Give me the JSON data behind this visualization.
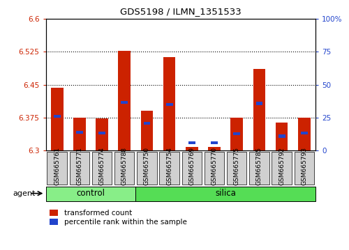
{
  "title": "GDS5198 / ILMN_1351533",
  "samples": [
    "GSM665761",
    "GSM665771",
    "GSM665774",
    "GSM665788",
    "GSM665750",
    "GSM665754",
    "GSM665769",
    "GSM665770",
    "GSM665775",
    "GSM665785",
    "GSM665792",
    "GSM665793"
  ],
  "red_values": [
    6.443,
    6.375,
    6.373,
    6.527,
    6.39,
    6.513,
    6.308,
    6.308,
    6.375,
    6.485,
    6.363,
    6.375
  ],
  "blue_values": [
    6.378,
    6.342,
    6.34,
    6.41,
    6.362,
    6.405,
    6.318,
    6.318,
    6.338,
    6.407,
    6.333,
    6.34
  ],
  "ylim_left": [
    6.3,
    6.6
  ],
  "ylim_right": [
    0,
    100
  ],
  "yticks_left": [
    6.3,
    6.375,
    6.45,
    6.525,
    6.6
  ],
  "yticks_right": [
    0,
    25,
    50,
    75,
    100
  ],
  "ytick_labels_left": [
    "6.3",
    "6.375",
    "6.45",
    "6.525",
    "6.6"
  ],
  "ytick_labels_right": [
    "0",
    "25",
    "50",
    "75",
    "100%"
  ],
  "dotted_lines": [
    6.375,
    6.45,
    6.525
  ],
  "base_value": 6.3,
  "bar_width": 0.55,
  "red_color": "#cc2200",
  "blue_color": "#2244cc",
  "control_color": "#88ee88",
  "silica_color": "#55dd55",
  "n_control": 4,
  "legend_red": "transformed count",
  "legend_blue": "percentile rank within the sample",
  "agent_label": "agent",
  "group_label_control": "control",
  "group_label_silica": "silica"
}
